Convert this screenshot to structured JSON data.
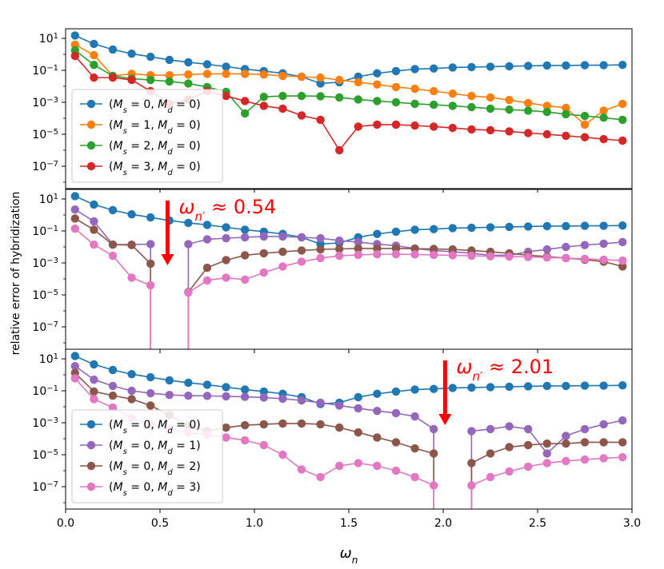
{
  "chart_data": {
    "type": "line",
    "ylabel": "relative error of hybridization",
    "xlabel": "ω_n",
    "x_ticks": [
      "0.0",
      "0.5",
      "1.0",
      "1.5",
      "2.0",
      "2.5",
      "3.0"
    ],
    "y_ticks": [
      {
        "base": "10",
        "exp": "1",
        "value": 10
      },
      {
        "base": "10",
        "exp": "−1",
        "value": 0.1
      },
      {
        "base": "10",
        "exp": "−3",
        "value": 0.001
      },
      {
        "base": "10",
        "exp": "−5",
        "value": 1e-05
      },
      {
        "base": "10",
        "exp": "−7",
        "value": 1e-07
      }
    ],
    "xlim": [
      0,
      3
    ],
    "ylim_log10": [
      -8.4,
      1.6
    ],
    "yscale": "log",
    "colors": {
      "blue": "#1f77b4",
      "orange": "#ff7f0e",
      "green": "#2ca02c",
      "red": "#d62728",
      "purple": "#9467bd",
      "brown": "#8c564b",
      "pink": "#e377c2",
      "annotation": "#ff0000"
    },
    "panels": [
      {
        "legend_position": "lower-left",
        "annotation": null,
        "series": [
          {
            "label": "(M_s = 0, M_d = 0)",
            "color": "#1f77b4",
            "x": [
              0.05,
              0.15,
              0.25,
              0.35,
              0.45,
              0.55,
              0.65,
              0.75,
              0.85,
              0.95,
              1.05,
              1.15,
              1.25,
              1.35,
              1.45,
              1.55,
              1.65,
              1.75,
              1.85,
              1.95,
              2.05,
              2.15,
              2.25,
              2.35,
              2.45,
              2.55,
              2.65,
              2.75,
              2.85,
              2.95
            ],
            "y": [
              15,
              4.5,
              2,
              1.1,
              0.7,
              0.45,
              0.32,
              0.24,
              0.17,
              0.12,
              0.09,
              0.065,
              0.04,
              0.015,
              0.018,
              0.04,
              0.065,
              0.09,
              0.12,
              0.13,
              0.15,
              0.16,
              0.17,
              0.18,
              0.19,
              0.2,
              0.2,
              0.21,
              0.21,
              0.22
            ]
          },
          {
            "label": "(M_s = 1, M_d = 0)",
            "color": "#ff7f0e",
            "x": [
              0.05,
              0.15,
              0.25,
              0.35,
              0.45,
              0.55,
              0.65,
              0.75,
              0.85,
              0.95,
              1.05,
              1.15,
              1.25,
              1.35,
              1.45,
              1.55,
              1.65,
              1.75,
              1.85,
              1.95,
              2.05,
              2.15,
              2.25,
              2.35,
              2.45,
              2.55,
              2.65,
              2.75,
              2.85,
              2.95
            ],
            "y": [
              4,
              0.9,
              0.045,
              0.06,
              0.05,
              0.05,
              0.055,
              0.06,
              0.06,
              0.06,
              0.055,
              0.045,
              0.04,
              0.035,
              0.025,
              0.018,
              0.013,
              0.009,
              0.007,
              0.005,
              0.0035,
              0.0025,
              0.002,
              0.0014,
              0.0009,
              0.0006,
              0.00045,
              4e-05,
              0.0003,
              0.0008
            ]
          },
          {
            "label": "(M_s = 2, M_d = 0)",
            "color": "#2ca02c",
            "x": [
              0.05,
              0.15,
              0.25,
              0.35,
              0.45,
              0.55,
              0.65,
              0.75,
              0.85,
              0.95,
              1.05,
              1.15,
              1.25,
              1.35,
              1.45,
              1.55,
              1.65,
              1.75,
              1.85,
              1.95,
              2.05,
              2.15,
              2.25,
              2.35,
              2.45,
              2.55,
              2.65,
              2.75,
              2.85,
              2.95
            ],
            "y": [
              1.8,
              0.22,
              0.045,
              0.03,
              0.025,
              0.02,
              0.015,
              0.009,
              0.0045,
              0.0002,
              0.0022,
              0.0025,
              0.0025,
              0.0024,
              0.002,
              0.0015,
              0.0012,
              0.001,
              0.0008,
              0.0007,
              0.0006,
              0.0005,
              0.0004,
              0.00035,
              0.0003,
              0.00025,
              0.00018,
              0.00014,
              0.00011,
              8e-05
            ]
          },
          {
            "label": "(M_s = 3, M_d = 0)",
            "color": "#d62728",
            "x": [
              0.05,
              0.15,
              0.25,
              0.35,
              0.45,
              0.55,
              0.65,
              0.75,
              0.85,
              0.95,
              1.05,
              1.15,
              1.25,
              1.35,
              1.45,
              1.55,
              1.65,
              1.75,
              1.85,
              1.95,
              2.05,
              2.15,
              2.25,
              2.35,
              2.45,
              2.55,
              2.65,
              2.75,
              2.85,
              2.95
            ],
            "y": [
              0.8,
              0.035,
              0.035,
              0.025,
              0.005,
              0.0008,
              0.0015,
              0.005,
              0.0025,
              0.0012,
              0.0006,
              0.0004,
              0.00015,
              8e-05,
              1e-06,
              3e-05,
              4e-05,
              4e-05,
              3.5e-05,
              3e-05,
              2.5e-05,
              2e-05,
              1.8e-05,
              1.5e-05,
              1.2e-05,
              1e-05,
              8e-06,
              6.5e-06,
              5e-06,
              4e-06
            ]
          }
        ]
      },
      {
        "legend_position": null,
        "annotation": {
          "text_prefix": "ω",
          "text_sub": "n′",
          "text_suffix": " ≈ 0.54",
          "x": 0.54
        },
        "series": [
          {
            "label": "(M_s = 0, M_d = 0)",
            "color": "#1f77b4",
            "x": [
              0.05,
              0.15,
              0.25,
              0.35,
              0.45,
              0.55,
              0.65,
              0.75,
              0.85,
              0.95,
              1.05,
              1.15,
              1.25,
              1.35,
              1.45,
              1.55,
              1.65,
              1.75,
              1.85,
              1.95,
              2.05,
              2.15,
              2.25,
              2.35,
              2.45,
              2.55,
              2.65,
              2.75,
              2.85,
              2.95
            ],
            "y": [
              15,
              4.5,
              2,
              1.1,
              0.7,
              0.45,
              0.32,
              0.24,
              0.17,
              0.12,
              0.09,
              0.065,
              0.04,
              0.015,
              0.018,
              0.04,
              0.065,
              0.09,
              0.12,
              0.13,
              0.15,
              0.16,
              0.17,
              0.18,
              0.19,
              0.2,
              0.2,
              0.21,
              0.21,
              0.22
            ]
          },
          {
            "label": "(M_s = 0, M_d = 1)",
            "color": "#9467bd",
            "x": [
              0.05,
              0.15,
              0.25,
              0.35,
              0.45,
              null,
              0.65,
              0.75,
              0.85,
              0.95,
              1.05,
              1.15,
              1.25,
              1.35,
              1.45,
              1.55,
              1.65,
              1.75,
              1.85,
              1.95,
              2.05,
              2.15,
              2.25,
              2.35,
              2.45,
              2.55,
              2.65,
              2.75,
              2.85,
              2.95
            ],
            "y": [
              2.2,
              0.4,
              0.014,
              0.014,
              0.015,
              null,
              0.015,
              0.03,
              0.035,
              0.04,
              0.045,
              0.045,
              0.04,
              0.035,
              0.025,
              0.02,
              0.015,
              0.012,
              0.008,
              0.006,
              0.005,
              0.004,
              0.003,
              0.003,
              0.005,
              0.007,
              0.01,
              0.013,
              0.016,
              0.02
            ]
          },
          {
            "label": "(M_s = 0, M_d = 2)",
            "color": "#8c564b",
            "x": [
              0.05,
              0.15,
              0.25,
              0.35,
              0.45,
              null,
              0.65,
              0.75,
              0.85,
              0.95,
              1.05,
              1.15,
              1.25,
              1.35,
              1.45,
              1.55,
              1.65,
              1.75,
              1.85,
              1.95,
              2.05,
              2.15,
              2.25,
              2.35,
              2.45,
              2.55,
              2.65,
              2.75,
              2.85,
              2.95
            ],
            "y": [
              0.6,
              0.12,
              0.014,
              0.013,
              0.0009,
              null,
              1.5e-05,
              0.0005,
              0.0015,
              0.003,
              0.004,
              0.005,
              0.006,
              0.007,
              0.0075,
              0.008,
              0.008,
              0.008,
              0.0078,
              0.0075,
              0.007,
              0.006,
              0.005,
              0.004,
              0.003,
              0.0025,
              0.002,
              0.0016,
              0.0012,
              0.0006
            ]
          },
          {
            "label": "(M_s = 0, M_d = 3)",
            "color": "#e377c2",
            "x": [
              0.05,
              0.15,
              0.25,
              0.35,
              0.45,
              null,
              0.65,
              0.75,
              0.85,
              0.95,
              1.05,
              1.15,
              1.25,
              1.35,
              1.45,
              1.55,
              1.65,
              1.75,
              1.85,
              1.95,
              2.05,
              2.15,
              2.25,
              2.35,
              2.45,
              2.55,
              2.65,
              2.75,
              2.85,
              2.95
            ],
            "y": [
              0.14,
              0.014,
              0.0028,
              0.00012,
              4e-05,
              null,
              1.4e-05,
              8e-05,
              0.00012,
              9e-05,
              0.00025,
              0.0006,
              0.0012,
              0.002,
              0.0028,
              0.0032,
              0.0035,
              0.0035,
              0.0034,
              0.0032,
              0.003,
              0.0028,
              0.0026,
              0.0025,
              0.0024,
              0.0022,
              0.002,
              0.0018,
              0.0016,
              0.0014
            ]
          }
        ]
      },
      {
        "legend_position": "lower-left",
        "annotation": {
          "text_prefix": "ω",
          "text_sub": "n′",
          "text_suffix": " ≈ 2.01",
          "x": 2.01
        },
        "series": [
          {
            "label": "(M_s = 0, M_d = 0)",
            "color": "#1f77b4",
            "x": [
              0.05,
              0.15,
              0.25,
              0.35,
              0.45,
              0.55,
              0.65,
              0.75,
              0.85,
              0.95,
              1.05,
              1.15,
              1.25,
              1.35,
              1.45,
              1.55,
              1.65,
              1.75,
              1.85,
              1.95,
              2.05,
              2.15,
              2.25,
              2.35,
              2.45,
              2.55,
              2.65,
              2.75,
              2.85,
              2.95
            ],
            "y": [
              15,
              4.5,
              2,
              1.1,
              0.7,
              0.45,
              0.32,
              0.24,
              0.17,
              0.12,
              0.09,
              0.065,
              0.04,
              0.015,
              0.018,
              0.04,
              0.065,
              0.09,
              0.12,
              0.13,
              0.15,
              0.16,
              0.17,
              0.18,
              0.19,
              0.2,
              0.2,
              0.21,
              0.21,
              0.22
            ]
          },
          {
            "label": "(M_s = 0, M_d = 1)",
            "color": "#9467bd",
            "x": [
              0.05,
              0.15,
              0.25,
              0.35,
              0.45,
              0.55,
              0.65,
              0.75,
              0.85,
              0.95,
              1.05,
              1.15,
              1.25,
              1.35,
              1.45,
              1.55,
              1.65,
              1.75,
              1.85,
              1.95,
              null,
              2.15,
              2.25,
              2.35,
              2.45,
              2.55,
              2.65,
              2.75,
              2.85,
              2.95
            ],
            "y": [
              3.5,
              0.5,
              0.2,
              0.1,
              0.07,
              0.055,
              0.05,
              0.048,
              0.045,
              0.042,
              0.038,
              0.032,
              0.025,
              0.018,
              0.012,
              0.008,
              0.0055,
              0.004,
              0.0025,
              0.0004,
              null,
              0.0003,
              0.0004,
              0.0006,
              0.0004,
              1.2e-05,
              0.00015,
              0.0004,
              0.0008,
              0.0014
            ]
          },
          {
            "label": "(M_s = 0, M_d = 2)",
            "color": "#8c564b",
            "x": [
              0.05,
              0.15,
              0.25,
              0.35,
              0.45,
              0.55,
              0.65,
              0.75,
              0.85,
              0.95,
              1.05,
              1.15,
              1.25,
              1.35,
              1.45,
              1.55,
              1.65,
              1.75,
              1.85,
              1.95,
              null,
              2.15,
              2.25,
              2.35,
              2.45,
              2.55,
              2.65,
              2.75,
              2.85,
              2.95
            ],
            "y": [
              1.3,
              0.09,
              0.05,
              0.03,
              0.012,
              0.003,
              0.0006,
              0.0003,
              0.0005,
              0.0007,
              0.0008,
              0.0009,
              0.0009,
              0.0008,
              0.0005,
              0.00025,
              0.00012,
              6e-05,
              2.5e-05,
              1.2e-05,
              null,
              3e-06,
              1.2e-05,
              3e-05,
              4e-05,
              5e-05,
              5e-05,
              6e-05,
              6e-05,
              6e-05
            ]
          },
          {
            "label": "(M_s = 0, M_d = 3)",
            "color": "#e377c2",
            "x": [
              0.05,
              0.15,
              0.25,
              0.35,
              0.45,
              0.55,
              0.65,
              0.75,
              0.85,
              0.95,
              1.05,
              1.15,
              1.25,
              1.35,
              1.45,
              1.55,
              1.65,
              1.75,
              1.85,
              1.95,
              null,
              2.15,
              2.25,
              2.35,
              2.45,
              2.55,
              2.65,
              2.75,
              2.85,
              2.95
            ],
            "y": [
              0.6,
              0.03,
              0.009,
              0.002,
              0.0008,
              0.0004,
              0.00025,
              0.00018,
              0.00012,
              8e-05,
              4e-05,
              1e-05,
              1.2e-06,
              4e-07,
              2e-06,
              3e-06,
              2e-06,
              1e-06,
              4e-07,
              1.2e-07,
              null,
              1.2e-07,
              4e-07,
              9e-07,
              1.8e-06,
              3e-06,
              4e-06,
              5e-06,
              6e-06,
              7e-06
            ]
          }
        ]
      }
    ]
  }
}
